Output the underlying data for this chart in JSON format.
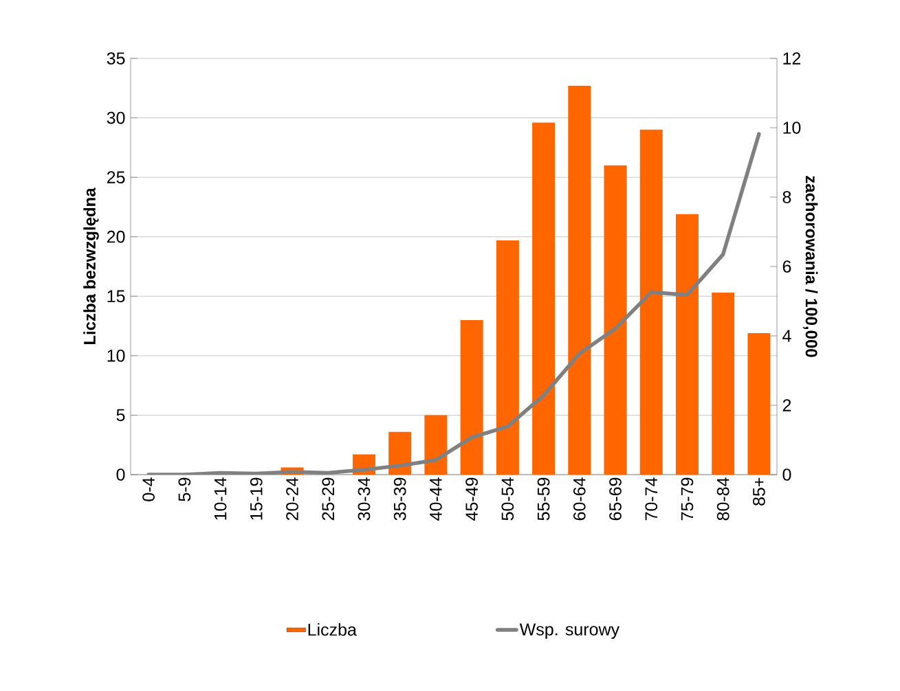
{
  "chart_data": {
    "type": "bar",
    "categories": [
      "0-4",
      "5-9",
      "10-14",
      "15-19",
      "20-24",
      "25-29",
      "30-34",
      "35-39",
      "40-44",
      "45-49",
      "50-54",
      "55-59",
      "60-64",
      "65-69",
      "70-74",
      "75-79",
      "80-84",
      "85+"
    ],
    "series": [
      {
        "name": "Liczba",
        "color": "#ff6600",
        "values": [
          0,
          0,
          0,
          0,
          0.6,
          0,
          1.7,
          3.6,
          5.0,
          13.0,
          19.7,
          29.6,
          32.7,
          26.0,
          29.0,
          21.9,
          15.3,
          11.9
        ]
      },
      {
        "name": "Wsp. surowy",
        "type": "line",
        "axis": "y2",
        "color": "#808080",
        "values": [
          0,
          0,
          0.05,
          0.03,
          0.08,
          0.05,
          0.14,
          0.26,
          0.42,
          1.07,
          1.39,
          2.28,
          3.49,
          4.21,
          5.26,
          5.18,
          6.35,
          9.82
        ]
      }
    ],
    "ylabel": "Liczba bezwzględna",
    "y2label": "zachorowania / 100,000",
    "ylim": [
      0,
      35
    ],
    "yticks": [
      0,
      5,
      10,
      15,
      20,
      25,
      30,
      35
    ],
    "y2lim": [
      0,
      12
    ],
    "y2ticks": [
      0,
      2,
      4,
      6,
      8,
      10,
      12
    ],
    "grid": "y",
    "legend": "bottom"
  }
}
